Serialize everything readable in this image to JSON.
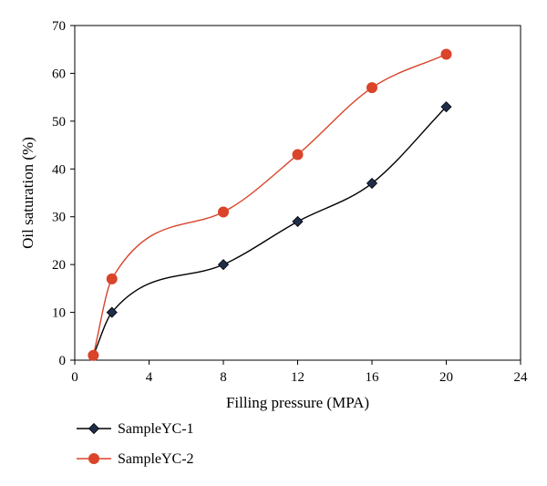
{
  "chart_data": {
    "type": "scatter",
    "xlabel": "Filling pressure (MPA)",
    "ylabel": "Oil saturation (%)",
    "xlim": [
      0,
      24
    ],
    "ylim": [
      0,
      70
    ],
    "xticks": [
      0,
      4,
      8,
      12,
      16,
      20,
      24
    ],
    "yticks": [
      0,
      10,
      20,
      30,
      40,
      50,
      60,
      70
    ],
    "grid": false,
    "legend_position": "bottom-left",
    "series": [
      {
        "name": "SampleYC-1",
        "marker": "diamond",
        "line_color": "#000000",
        "marker_color": "#1f2d4a",
        "smooth": true,
        "x": [
          1,
          2,
          8,
          12,
          16,
          20
        ],
        "y": [
          1,
          10,
          20,
          29,
          37,
          53
        ]
      },
      {
        "name": "SampleYC-2",
        "marker": "circle",
        "line_color": "#d9442a",
        "marker_color": "#d9442a",
        "smooth": true,
        "x": [
          1,
          2,
          8,
          12,
          16,
          20
        ],
        "y": [
          1,
          17,
          31,
          43,
          57,
          64
        ]
      }
    ]
  }
}
